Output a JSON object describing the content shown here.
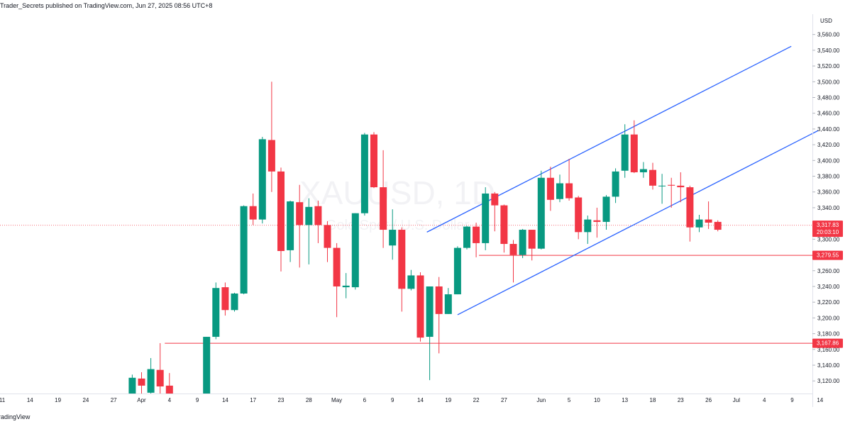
{
  "header": {
    "published_text": "Trader_Secrets published on TradingView.com, Jun 27, 2025 08:56 UTC+8"
  },
  "footer": {
    "brand_text": "radingView"
  },
  "watermark": {
    "symbol": "XAUUSD, 1D",
    "description": "Gold Spot / U.S. Dollar"
  },
  "price_axis": {
    "currency": "USD"
  },
  "colors": {
    "up": "#089981",
    "down": "#f23645",
    "trend": "#2962ff",
    "level": "#f23645",
    "price_line": "#f23645"
  },
  "chart_data": {
    "type": "candlestick",
    "ylim": [
      3104,
      3566
    ],
    "y_ticks": [
      "3,120.00",
      "3,140.00",
      "3,160.00",
      "3,180.00",
      "3,200.00",
      "3,220.00",
      "3,240.00",
      "3,260.00",
      "3,280.00",
      "3,300.00",
      "3,320.00",
      "3,340.00",
      "3,360.00",
      "3,380.00",
      "3,400.00",
      "3,420.00",
      "3,440.00",
      "3,460.00",
      "3,480.00",
      "3,500.00",
      "3,520.00",
      "3,540.00",
      "3,560.00"
    ],
    "x_ticks": [
      {
        "i": 0,
        "label": "11"
      },
      {
        "i": 3,
        "label": "14"
      },
      {
        "i": 6,
        "label": "19"
      },
      {
        "i": 9,
        "label": "24"
      },
      {
        "i": 12,
        "label": "27"
      },
      {
        "i": 15,
        "label": "Apr"
      },
      {
        "i": 18,
        "label": "4"
      },
      {
        "i": 21,
        "label": "9"
      },
      {
        "i": 24,
        "label": "14"
      },
      {
        "i": 27,
        "label": "17"
      },
      {
        "i": 30,
        "label": "23"
      },
      {
        "i": 33,
        "label": "28"
      },
      {
        "i": 36,
        "label": "May"
      },
      {
        "i": 39,
        "label": "6"
      },
      {
        "i": 42,
        "label": "9"
      },
      {
        "i": 45,
        "label": "14"
      },
      {
        "i": 48,
        "label": "19"
      },
      {
        "i": 51,
        "label": "22"
      },
      {
        "i": 54,
        "label": "27"
      },
      {
        "i": 58,
        "label": "Jun"
      },
      {
        "i": 61,
        "label": "5"
      },
      {
        "i": 64,
        "label": "10"
      },
      {
        "i": 67,
        "label": "13"
      },
      {
        "i": 70,
        "label": "18"
      },
      {
        "i": 73,
        "label": "23"
      },
      {
        "i": 76,
        "label": "26"
      },
      {
        "i": 79,
        "label": "Jul"
      },
      {
        "i": 82,
        "label": "4"
      },
      {
        "i": 85,
        "label": "9"
      },
      {
        "i": 88,
        "label": "14"
      }
    ],
    "candles": [
      {
        "i": 14,
        "o": 3104,
        "h": 3128,
        "l": 3104,
        "c": 3124
      },
      {
        "i": 15,
        "o": 3123,
        "h": 3131,
        "l": 3104,
        "c": 3114
      },
      {
        "i": 16,
        "o": 3105,
        "h": 3149,
        "l": 3104,
        "c": 3135
      },
      {
        "i": 17,
        "o": 3134,
        "h": 3168,
        "l": 3104,
        "c": 3113
      },
      {
        "i": 18,
        "o": 3114,
        "h": 3130,
        "l": 3104,
        "c": 3104
      },
      {
        "i": 22,
        "o": 3104,
        "h": 3176,
        "l": 3104,
        "c": 3176
      },
      {
        "i": 23,
        "o": 3176,
        "h": 3245,
        "l": 3173,
        "c": 3238
      },
      {
        "i": 24,
        "o": 3239,
        "h": 3245,
        "l": 3203,
        "c": 3210
      },
      {
        "i": 25,
        "o": 3210,
        "h": 3232,
        "l": 3208,
        "c": 3231
      },
      {
        "i": 26,
        "o": 3231,
        "h": 3343,
        "l": 3230,
        "c": 3342
      },
      {
        "i": 27,
        "o": 3342,
        "h": 3358,
        "l": 3318,
        "c": 3325
      },
      {
        "i": 28,
        "o": 3325,
        "h": 3430,
        "l": 3320,
        "c": 3427
      },
      {
        "i": 29,
        "o": 3426,
        "h": 3500,
        "l": 3360,
        "c": 3386
      },
      {
        "i": 30,
        "o": 3386,
        "h": 3391,
        "l": 3259,
        "c": 3285
      },
      {
        "i": 31,
        "o": 3286,
        "h": 3349,
        "l": 3271,
        "c": 3348
      },
      {
        "i": 32,
        "o": 3347,
        "h": 3369,
        "l": 3264,
        "c": 3318
      },
      {
        "i": 33,
        "o": 3318,
        "h": 3352,
        "l": 3268,
        "c": 3341
      },
      {
        "i": 34,
        "o": 3342,
        "h": 3349,
        "l": 3295,
        "c": 3318
      },
      {
        "i": 35,
        "o": 3318,
        "h": 3323,
        "l": 3271,
        "c": 3289
      },
      {
        "i": 36,
        "o": 3289,
        "h": 3295,
        "l": 3201,
        "c": 3240
      },
      {
        "i": 37,
        "o": 3239,
        "h": 3257,
        "l": 3225,
        "c": 3241
      },
      {
        "i": 38,
        "o": 3239,
        "h": 3333,
        "l": 3236,
        "c": 3333
      },
      {
        "i": 39,
        "o": 3333,
        "h": 3435,
        "l": 3330,
        "c": 3433
      },
      {
        "i": 40,
        "o": 3433,
        "h": 3436,
        "l": 3365,
        "c": 3366
      },
      {
        "i": 41,
        "o": 3366,
        "h": 3413,
        "l": 3289,
        "c": 3312
      },
      {
        "i": 42,
        "o": 3292,
        "h": 3338,
        "l": 3274,
        "c": 3312
      },
      {
        "i": 43,
        "o": 3312,
        "h": 3315,
        "l": 3208,
        "c": 3237
      },
      {
        "i": 44,
        "o": 3237,
        "h": 3261,
        "l": 3235,
        "c": 3254
      },
      {
        "i": 45,
        "o": 3254,
        "h": 3258,
        "l": 3170,
        "c": 3175
      },
      {
        "i": 46,
        "o": 3176,
        "h": 3240,
        "l": 3121,
        "c": 3240
      },
      {
        "i": 47,
        "o": 3240,
        "h": 3252,
        "l": 3155,
        "c": 3205
      },
      {
        "i": 48,
        "o": 3205,
        "h": 3238,
        "l": 3205,
        "c": 3230
      },
      {
        "i": 49,
        "o": 3230,
        "h": 3291,
        "l": 3230,
        "c": 3289
      },
      {
        "i": 50,
        "o": 3289,
        "h": 3317,
        "l": 3287,
        "c": 3316
      },
      {
        "i": 51,
        "o": 3316,
        "h": 3321,
        "l": 3277,
        "c": 3295
      },
      {
        "i": 52,
        "o": 3295,
        "h": 3366,
        "l": 3286,
        "c": 3358
      },
      {
        "i": 53,
        "o": 3358,
        "h": 3360,
        "l": 3310,
        "c": 3343
      },
      {
        "i": 54,
        "o": 3343,
        "h": 3344,
        "l": 3283,
        "c": 3294
      },
      {
        "i": 55,
        "o": 3294,
        "h": 3299,
        "l": 3245,
        "c": 3280
      },
      {
        "i": 56,
        "o": 3280,
        "h": 3313,
        "l": 3276,
        "c": 3312
      },
      {
        "i": 57,
        "o": 3312,
        "h": 3312,
        "l": 3273,
        "c": 3288
      },
      {
        "i": 58,
        "o": 3288,
        "h": 3387,
        "l": 3287,
        "c": 3378
      },
      {
        "i": 59,
        "o": 3378,
        "h": 3392,
        "l": 3336,
        "c": 3350
      },
      {
        "i": 60,
        "o": 3351,
        "h": 3382,
        "l": 3347,
        "c": 3371
      },
      {
        "i": 61,
        "o": 3371,
        "h": 3402,
        "l": 3349,
        "c": 3352
      },
      {
        "i": 62,
        "o": 3353,
        "h": 3355,
        "l": 3300,
        "c": 3309
      },
      {
        "i": 63,
        "o": 3309,
        "h": 3330,
        "l": 3294,
        "c": 3325
      },
      {
        "i": 64,
        "o": 3324,
        "h": 3340,
        "l": 3302,
        "c": 3322
      },
      {
        "i": 65,
        "o": 3322,
        "h": 3356,
        "l": 3312,
        "c": 3354
      },
      {
        "i": 66,
        "o": 3354,
        "h": 3390,
        "l": 3346,
        "c": 3386
      },
      {
        "i": 67,
        "o": 3387,
        "h": 3446,
        "l": 3378,
        "c": 3433
      },
      {
        "i": 68,
        "o": 3433,
        "h": 3451,
        "l": 3384,
        "c": 3385
      },
      {
        "i": 69,
        "o": 3385,
        "h": 3398,
        "l": 3378,
        "c": 3389
      },
      {
        "i": 70,
        "o": 3388,
        "h": 3397,
        "l": 3363,
        "c": 3368
      },
      {
        "i": 71,
        "o": 3368,
        "h": 3383,
        "l": 3345,
        "c": 3368
      },
      {
        "i": 72,
        "o": 3369,
        "h": 3378,
        "l": 3340,
        "c": 3368
      },
      {
        "i": 73,
        "o": 3368,
        "h": 3385,
        "l": 3347,
        "c": 3366
      },
      {
        "i": 74,
        "o": 3366,
        "h": 3368,
        "l": 3297,
        "c": 3315
      },
      {
        "i": 75,
        "o": 3315,
        "h": 3331,
        "l": 3309,
        "c": 3325
      },
      {
        "i": 76,
        "o": 3325,
        "h": 3348,
        "l": 3313,
        "c": 3321
      },
      {
        "i": 77,
        "o": 3322,
        "h": 3324,
        "l": 3310,
        "c": 3312
      }
    ],
    "trendlines": [
      {
        "name": "channel-upper",
        "from": {
          "i": 45.7,
          "price": 3309
        },
        "to": {
          "i": 84.9,
          "price": 3545
        }
      },
      {
        "name": "channel-lower",
        "from": {
          "i": 49.0,
          "price": 3204
        },
        "to": {
          "i": 87.8,
          "price": 3438
        }
      }
    ],
    "levels": [
      {
        "name": "support-level",
        "price": 3167.86,
        "label": "3,167.86",
        "from_i": 17.5
      },
      {
        "name": "level-2",
        "price": 3279.55,
        "label": "3,279.55",
        "from_i": 51.3
      }
    ],
    "last_price": {
      "price": 3317.83,
      "label": "3,317.83",
      "countdown": "20:03:10"
    }
  }
}
